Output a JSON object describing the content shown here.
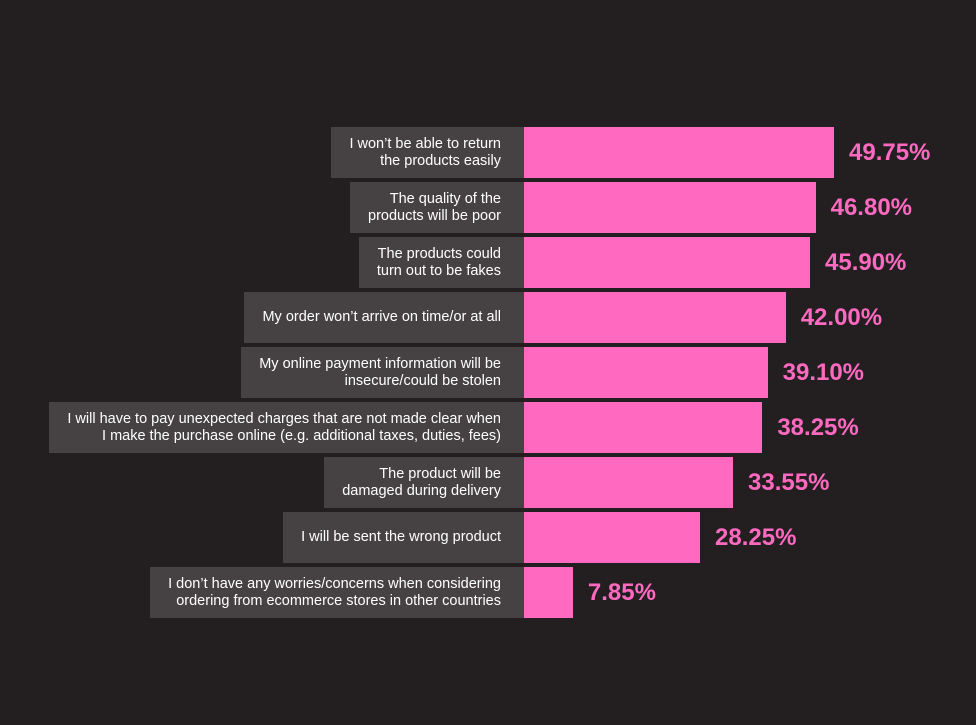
{
  "chart_data": {
    "type": "bar",
    "orientation": "horizontal",
    "categories": [
      "I won’t be able to return\nthe products easily",
      "The quality of the\nproducts will be poor",
      "The products could\nturn out to be fakes",
      "My order won’t arrive on time/or at all",
      "My online payment information will be\ninsecure/could be stolen",
      "I will have to pay unexpected charges that are not made clear when\nI make the purchase online (e.g. additional taxes, duties, fees)",
      "The product will be\ndamaged during delivery",
      "I will be sent the wrong product",
      "I don’t have any worries/concerns when considering\nordering from ecommerce stores in other countries"
    ],
    "values": [
      49.75,
      46.8,
      45.9,
      42.0,
      39.1,
      38.25,
      33.55,
      28.25,
      7.85
    ],
    "value_labels": [
      "49.75%",
      "46.80%",
      "45.90%",
      "42.00%",
      "39.10%",
      "38.25%",
      "33.55%",
      "28.25%",
      "7.85%"
    ],
    "xlim": [
      0,
      50
    ],
    "colors": {
      "bar": "#ff69c0",
      "label_bg": "#464244",
      "background": "#231f20",
      "label_text": "#ffffff",
      "value_text": "#ff69c0"
    }
  }
}
